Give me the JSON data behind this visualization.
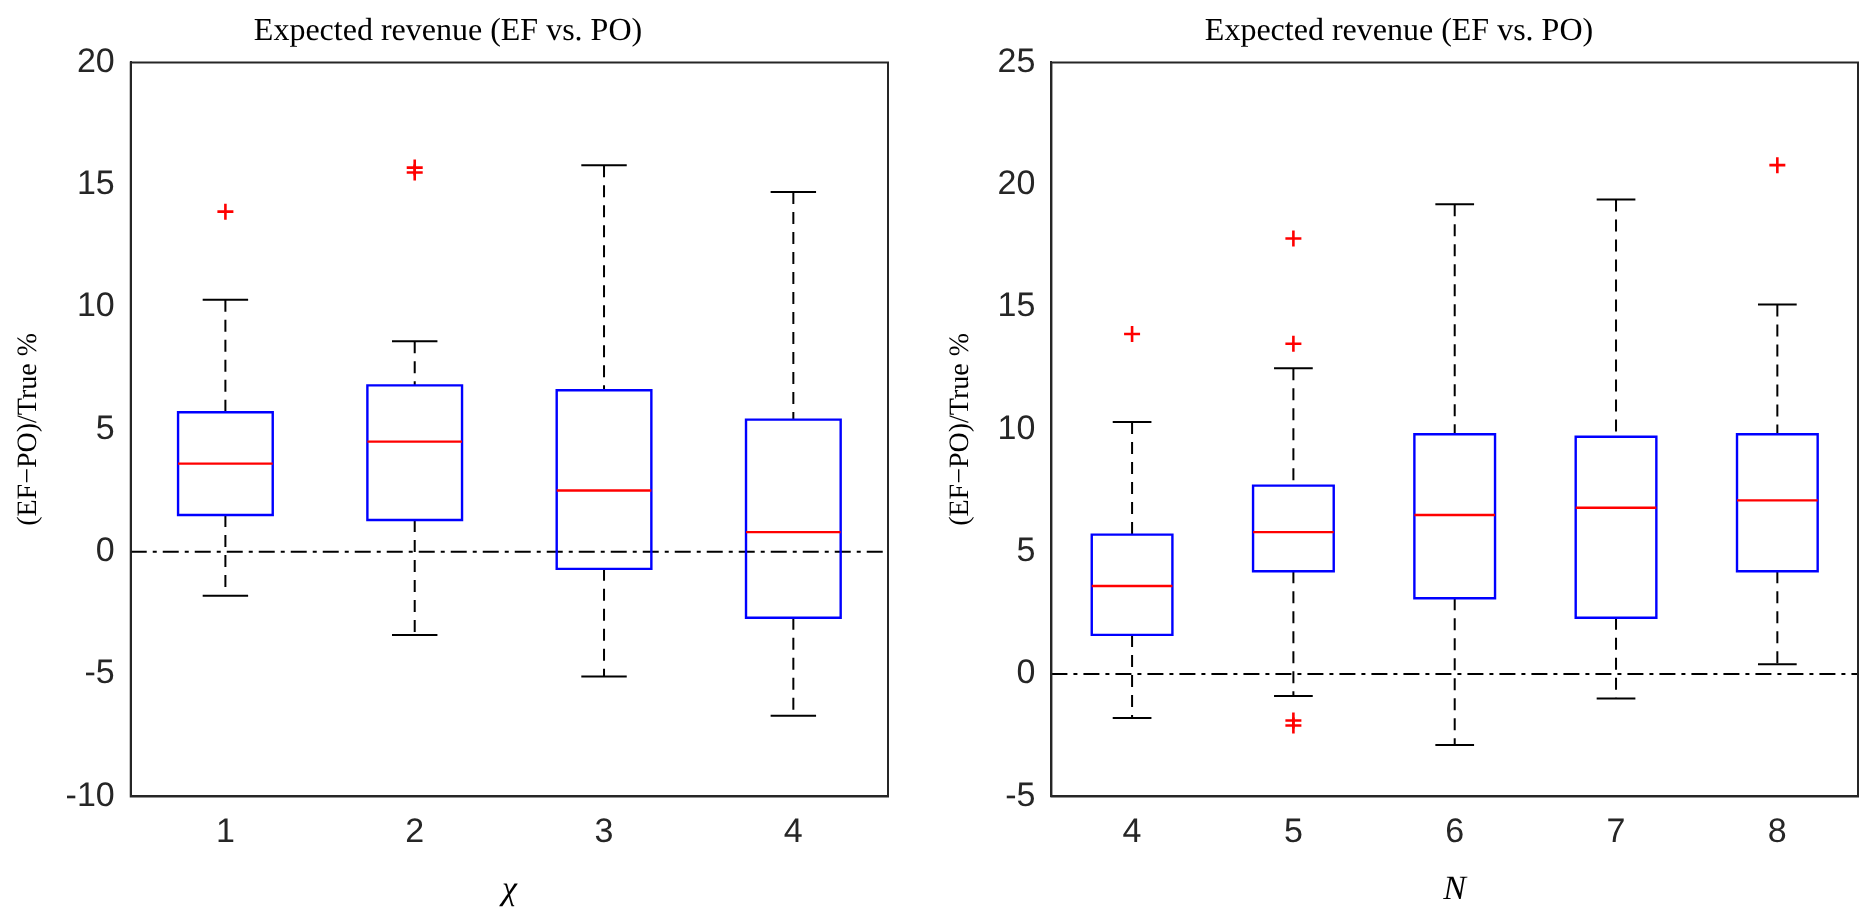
{
  "chart_data": [
    {
      "type": "box",
      "title": "Expected revenue (EF vs. PO)",
      "xlabel": "χ",
      "ylabel": "(EF−PO)/True %",
      "categories": [
        "1",
        "2",
        "3",
        "4"
      ],
      "color": "#0000ff",
      "ylim": [
        -10,
        20
      ],
      "yticks": [
        -10,
        -5,
        0,
        5,
        10,
        15,
        20
      ],
      "grid": false,
      "marker": "cross",
      "boxes": [
        {
          "low": -1.8,
          "q1": 1.5,
          "median": 3.6,
          "q3": 5.7,
          "high": 10.3,
          "outliers": [
            13.9
          ]
        },
        {
          "low": -3.4,
          "q1": 1.3,
          "median": 4.5,
          "q3": 6.8,
          "high": 8.6,
          "outliers": [
            15.7,
            15.5
          ]
        },
        {
          "low": -5.1,
          "q1": -0.7,
          "median": 2.5,
          "q3": 6.6,
          "high": 15.8
        },
        {
          "low": -6.7,
          "q1": -2.7,
          "median": 0.8,
          "q3": 5.4,
          "high": 14.7
        }
      ],
      "ref_lines": [
        {
          "axis": "y",
          "value": 0,
          "color": "#000000",
          "line_style": "dashdot"
        }
      ]
    },
    {
      "type": "box",
      "title": "Expected revenue (EF vs. PO)",
      "xlabel": "N",
      "ylabel": "(EF−PO)/True %",
      "categories": [
        "4",
        "5",
        "6",
        "7",
        "8"
      ],
      "color": "#0000ff",
      "ylim": [
        -5,
        25
      ],
      "yticks": [
        -5,
        0,
        5,
        10,
        15,
        20,
        25
      ],
      "grid": false,
      "marker": "cross",
      "boxes": [
        {
          "low": -1.8,
          "q1": 1.6,
          "median": 3.6,
          "q3": 5.7,
          "high": 10.3,
          "outliers": [
            13.9
          ]
        },
        {
          "low": -0.9,
          "q1": 4.2,
          "median": 5.8,
          "q3": 7.7,
          "high": 12.5,
          "outliers": [
            17.8,
            13.5,
            -1.9,
            -2.1
          ]
        },
        {
          "low": -2.9,
          "q1": 3.1,
          "median": 6.5,
          "q3": 9.8,
          "high": 19.2
        },
        {
          "low": -1.0,
          "q1": 2.3,
          "median": 6.8,
          "q3": 9.7,
          "high": 19.4
        },
        {
          "low": 0.4,
          "q1": 4.2,
          "median": 7.1,
          "q3": 9.8,
          "high": 15.1,
          "outliers": [
            20.8
          ]
        }
      ],
      "ref_lines": [
        {
          "axis": "y",
          "value": 0,
          "color": "#000000",
          "line_style": "dashdot"
        }
      ]
    }
  ]
}
